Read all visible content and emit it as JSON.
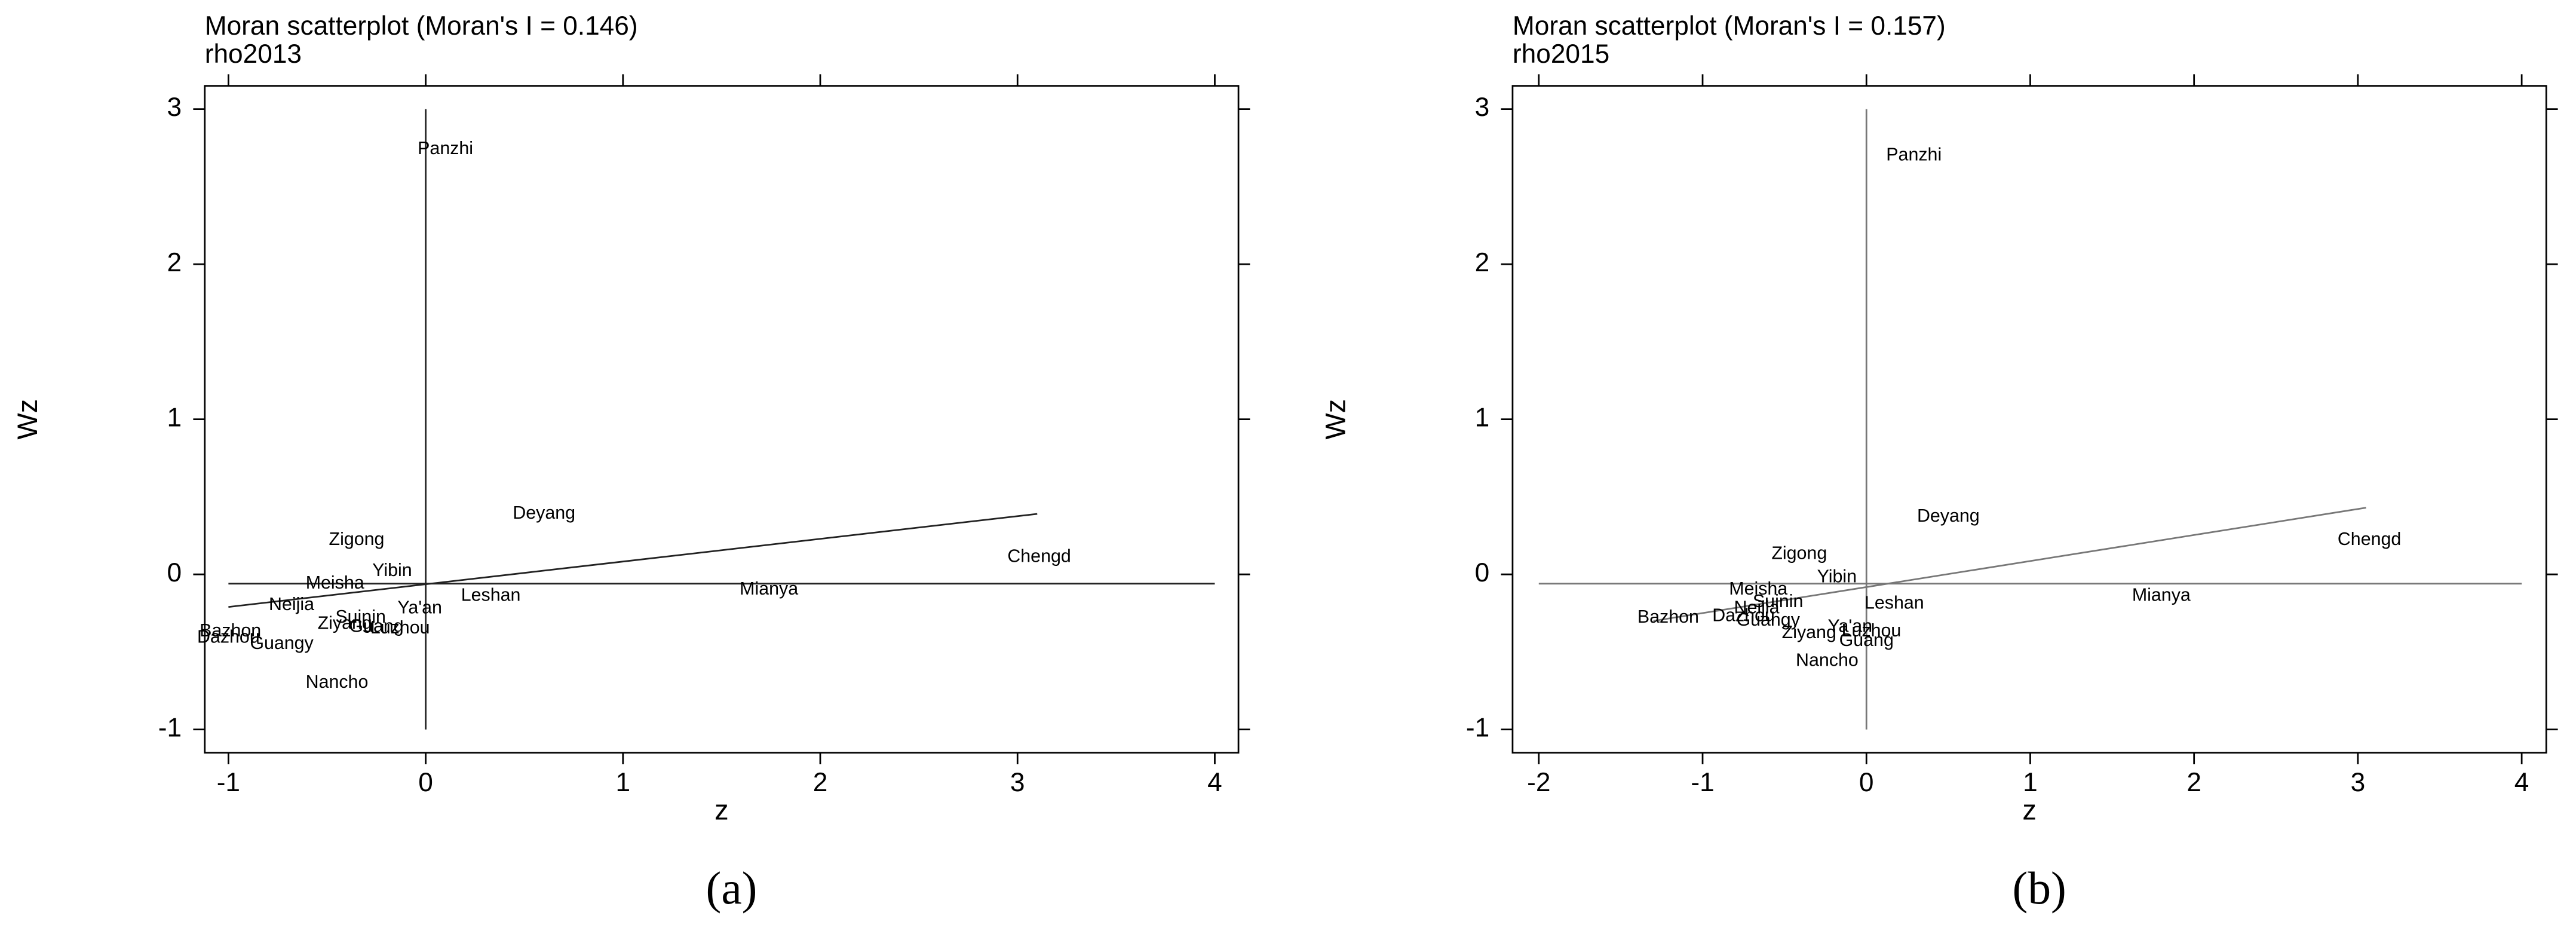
{
  "chart_data": [
    {
      "type": "scatter",
      "title": "Moran scatterplot (Moran's I = 0.146)",
      "subtitle": "rho2013",
      "x_label": "z",
      "y_label": "Wz",
      "caption": "(a)",
      "xlim": [
        -1.12,
        4.12
      ],
      "ylim": [
        -1.15,
        3.15
      ],
      "xticks": [
        -1,
        0,
        1,
        2,
        3,
        4
      ],
      "yticks": [
        -1,
        0,
        1,
        2,
        3
      ],
      "color": "#000000",
      "line_color": "#222222",
      "point_labels": [
        "Panzhi",
        "Deyang",
        "Chengd",
        "Mianya",
        "Leshan",
        "Zigong",
        "Yibin",
        "Meisha",
        "Neijia",
        "Ya'an",
        "Suinin",
        "Ziyang",
        "Guang",
        "Luzhou",
        "Bazhon",
        "Dazhou",
        "Guangy",
        "Nancho"
      ],
      "x": [
        0.1,
        0.6,
        3.11,
        1.74,
        0.33,
        -0.35,
        -0.17,
        -0.46,
        -0.68,
        -0.03,
        -0.33,
        -0.41,
        -0.25,
        -0.13,
        -0.99,
        -1.0,
        -0.73,
        -0.45
      ],
      "values": [
        2.74,
        0.39,
        0.11,
        -0.1,
        -0.14,
        0.22,
        0.02,
        -0.06,
        -0.2,
        -0.22,
        -0.28,
        -0.32,
        -0.34,
        -0.35,
        -0.37,
        -0.41,
        -0.45,
        -0.7
      ],
      "fit_line": {
        "x": [
          -1.0,
          3.1
        ],
        "y": [
          -0.21,
          0.39
        ]
      },
      "ref_lines": {
        "h": -0.06,
        "v": 0
      }
    },
    {
      "type": "scatter",
      "title": "Moran scatterplot (Moran's I = 0.157)",
      "subtitle": "rho2015",
      "x_label": "z",
      "y_label": "Wz",
      "caption": "(b)",
      "xlim": [
        -2.16,
        4.15
      ],
      "ylim": [
        -1.15,
        3.15
      ],
      "xticks": [
        -2,
        -1,
        0,
        1,
        2,
        3,
        4
      ],
      "yticks": [
        -1,
        0,
        1,
        2,
        3
      ],
      "color": "#000000",
      "line_color": "#777777",
      "point_labels": [
        "Panzhi",
        "Deyang",
        "Chengd",
        "Mianya",
        "Leshan",
        "Zigong",
        "Yibin",
        "Meisha",
        "Suinin",
        "Neijia",
        "Dazhou",
        "Bazhon",
        "Guangy",
        "Ya'an",
        "Ziyang",
        "Luzhou",
        "Guang",
        "Nancho"
      ],
      "x": [
        0.29,
        0.5,
        3.07,
        1.8,
        0.17,
        -0.41,
        -0.18,
        -0.66,
        -0.54,
        -0.67,
        -0.75,
        -1.21,
        -0.6,
        -0.1,
        -0.35,
        0.03,
        0.0,
        -0.24
      ],
      "values": [
        2.7,
        0.37,
        0.22,
        -0.14,
        -0.19,
        0.13,
        -0.02,
        -0.1,
        -0.18,
        -0.22,
        -0.27,
        -0.28,
        -0.3,
        -0.34,
        -0.38,
        -0.37,
        -0.43,
        -0.56
      ],
      "fit_line": {
        "x": [
          -1.3,
          3.05
        ],
        "y": [
          -0.3,
          0.43
        ]
      },
      "ref_lines": {
        "h": -0.06,
        "v": 0
      }
    }
  ]
}
